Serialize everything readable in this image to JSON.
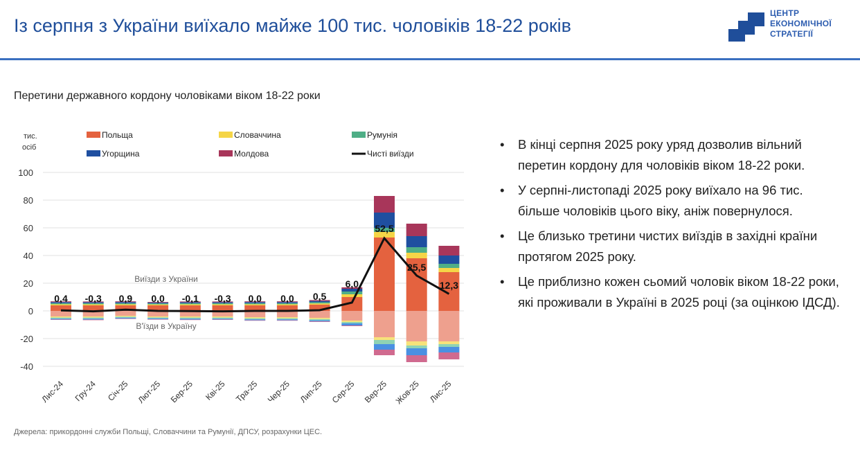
{
  "header": {
    "title": "Із серпня з України виїхало майже 100 тис. чоловіків 18-22 років",
    "logo_lines": [
      "ЦЕНТР",
      "ЕКОНОМІЧНОЇ",
      "СТРАТЕГІЇ"
    ],
    "accent_color": "#1f4e9a"
  },
  "bullets": [
    "В кінці серпня 2025 року уряд дозволив вільний перетин кордону для чоловіків віком 18-22 роки.",
    "У серпні-листопаді 2025 року виїхало на 96 тис. більше чоловіків цього віку, аніж повернулося.",
    "Це близько третини чистих виїздів в західні країни протягом 2025 року.",
    "Це приблизно кожен сьомий чоловік віком 18-22 роки, які проживали в Україні в 2025 році (за оцінкою ІДСД)."
  ],
  "source": "Джерела: прикордонні служби Польщі, Словаччини та Румунії, ДПСУ, розрахунки ЦЕС.",
  "chart_data": {
    "type": "bar",
    "stacked": true,
    "title": "Перетини державного кордону чоловіками віком 18-22 роки",
    "ylabel": "тис. осіб",
    "ylim": [
      -40,
      100
    ],
    "yticks": [
      100,
      80,
      60,
      40,
      20,
      0,
      -20,
      -40
    ],
    "grid": true,
    "legend_position": "top",
    "annotations": {
      "outflow": "Виїзди з України",
      "inflow": "В'їзди в Україну"
    },
    "categories": [
      "Лис-24",
      "Гру-24",
      "Січ-25",
      "Лют-25",
      "Бер-25",
      "Кві-25",
      "Тра-25",
      "Чер-25",
      "Лип-25",
      "Сер-25",
      "Вер-25",
      "Жов-25",
      "Лис-25"
    ],
    "series": [
      {
        "name": "Польща",
        "color": "#e4623f",
        "inflow_color": "#eea08e",
        "out": [
          4,
          4,
          4,
          4,
          4,
          4,
          4,
          4,
          4.5,
          10,
          53,
          38,
          28
        ],
        "in": [
          -4,
          -4,
          -3.5,
          -4,
          -4,
          -4,
          -4.5,
          -4.5,
          -5,
          -7,
          -19,
          -22,
          -22
        ]
      },
      {
        "name": "Словаччина",
        "color": "#f5d547",
        "inflow_color": "#f7e27a",
        "out": [
          0.8,
          0.8,
          0.8,
          0.7,
          0.8,
          0.8,
          0.8,
          0.8,
          0.9,
          2,
          4,
          4,
          3
        ],
        "in": [
          -0.8,
          -0.8,
          -0.7,
          -0.7,
          -0.8,
          -0.8,
          -0.8,
          -0.8,
          -0.9,
          -1,
          -2,
          -3,
          -2
        ]
      },
      {
        "name": "Румунія",
        "color": "#4fae86",
        "inflow_color": "#8fd3b4",
        "out": [
          0.8,
          0.8,
          0.8,
          0.7,
          0.8,
          0.8,
          0.8,
          0.8,
          0.9,
          2,
          3,
          4,
          3
        ],
        "in": [
          -0.8,
          -0.8,
          -0.7,
          -0.7,
          -0.8,
          -0.8,
          -0.8,
          -0.8,
          -0.9,
          -1,
          -3,
          -2,
          -2
        ]
      },
      {
        "name": "Угорщина",
        "color": "#1f4fa0",
        "inflow_color": "#4a90e2",
        "out": [
          0.8,
          0.7,
          0.8,
          0.6,
          0.7,
          0.7,
          0.8,
          0.8,
          0.9,
          2,
          11,
          8,
          6
        ],
        "in": [
          -0.6,
          -0.7,
          -0.6,
          -0.6,
          -0.7,
          -0.6,
          -0.7,
          -0.7,
          -0.8,
          -1.5,
          -4,
          -5,
          -4
        ]
      },
      {
        "name": "Молдова",
        "color": "#a8365a",
        "inflow_color": "#d06a8f",
        "out": [
          0.5,
          0.5,
          0.5,
          0.4,
          0.5,
          0.5,
          0.5,
          0.5,
          0.6,
          1,
          12,
          9,
          7
        ],
        "in": [
          -0.3,
          -0.4,
          -0.3,
          -0.3,
          -0.3,
          -0.3,
          -0.3,
          -0.3,
          -0.4,
          -0.5,
          -4,
          -5,
          -5
        ]
      }
    ],
    "net_line": {
      "name": "Чисті виїзди",
      "color": "#111111",
      "values": [
        0.4,
        -0.3,
        0.9,
        0.0,
        -0.1,
        -0.3,
        0.0,
        0.0,
        0.5,
        6.0,
        52.5,
        25.5,
        12.3
      ],
      "labels": [
        "0,4",
        "-0,3",
        "0,9",
        "0,0",
        "-0,1",
        "-0,3",
        "0,0",
        "0,0",
        "0,5",
        "6,0",
        "52,5",
        "25,5",
        "12,3"
      ]
    }
  }
}
